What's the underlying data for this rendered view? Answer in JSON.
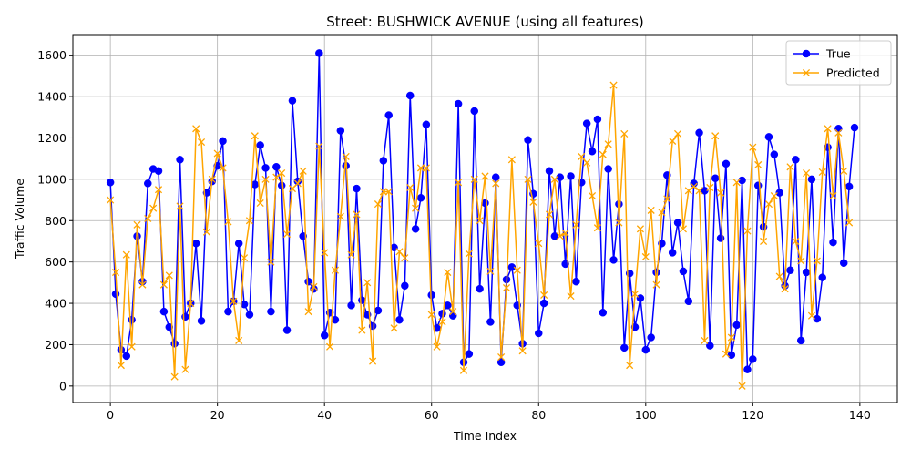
{
  "chart_data": {
    "type": "line",
    "title": "Street: BUSHWICK AVENUE (using all features)",
    "xlabel": "Time Index",
    "ylabel": "Traffic Volume",
    "xlim": [
      -7,
      147
    ],
    "ylim": [
      -80,
      1700
    ],
    "xticks": [
      0,
      20,
      40,
      60,
      80,
      100,
      120,
      140
    ],
    "yticks": [
      0,
      200,
      400,
      600,
      800,
      1000,
      1200,
      1400,
      1600
    ],
    "grid": true,
    "legend_position": "top-right",
    "series": [
      {
        "name": "True",
        "color": "#0000ff",
        "marker": "circle",
        "values": [
          985,
          445,
          175,
          145,
          320,
          725,
          505,
          980,
          1050,
          1040,
          360,
          285,
          205,
          1095,
          335,
          400,
          690,
          315,
          935,
          990,
          1065,
          1185,
          360,
          410,
          690,
          395,
          345,
          975,
          1165,
          1055,
          360,
          1060,
          970,
          270,
          1380,
          990,
          725,
          505,
          470,
          1610,
          245,
          355,
          320,
          1235,
          1065,
          390,
          955,
          415,
          345,
          290,
          365,
          1090,
          1310,
          670,
          320,
          485,
          1405,
          760,
          910,
          1265,
          440,
          280,
          350,
          390,
          340,
          1365,
          115,
          155,
          1330,
          470,
          885,
          310,
          1010,
          115,
          515,
          575,
          390,
          205,
          1190,
          930,
          255,
          400,
          1040,
          725,
          1010,
          590,
          1015,
          505,
          985,
          1270,
          1135,
          1290,
          355,
          1050,
          610,
          880,
          185,
          545,
          285,
          425,
          175,
          235,
          550,
          690,
          1020,
          645,
          790,
          555,
          410,
          980,
          1225,
          945,
          195,
          1005,
          715,
          1075,
          150,
          295,
          995,
          80,
          130,
          970,
          770,
          1205,
          1120,
          935,
          485,
          560,
          1095,
          220,
          550,
          1000,
          325,
          525,
          1155,
          695,
          1245,
          595,
          965,
          1250
        ]
      },
      {
        "name": "Predicted",
        "color": "#ffa500",
        "marker": "x",
        "values": [
          900,
          550,
          100,
          635,
          190,
          780,
          490,
          810,
          860,
          950,
          490,
          535,
          45,
          870,
          80,
          400,
          1245,
          1180,
          745,
          1000,
          1125,
          1055,
          795,
          410,
          220,
          620,
          800,
          1210,
          885,
          1000,
          600,
          1010,
          1030,
          735,
          955,
          980,
          1040,
          360,
          480,
          1160,
          645,
          190,
          560,
          820,
          1110,
          635,
          830,
          270,
          500,
          120,
          880,
          940,
          940,
          280,
          650,
          620,
          960,
          860,
          1055,
          1055,
          345,
          190,
          310,
          550,
          360,
          985,
          75,
          640,
          1000,
          800,
          1015,
          555,
          980,
          140,
          475,
          1095,
          560,
          170,
          1000,
          890,
          690,
          440,
          830,
          1000,
          725,
          740,
          435,
          780,
          1110,
          1080,
          920,
          765,
          1120,
          1170,
          1455,
          790,
          1220,
          100,
          445,
          760,
          625,
          850,
          490,
          840,
          905,
          1185,
          1220,
          760,
          945,
          965,
          945,
          220,
          960,
          1210,
          935,
          155,
          235,
          985,
          0,
          750,
          1155,
          1070,
          700,
          880,
          920,
          530,
          470,
          1060,
          700,
          605,
          1030,
          340,
          605,
          1035,
          1245,
          920,
          1225,
          1040,
          790
        ]
      }
    ]
  }
}
